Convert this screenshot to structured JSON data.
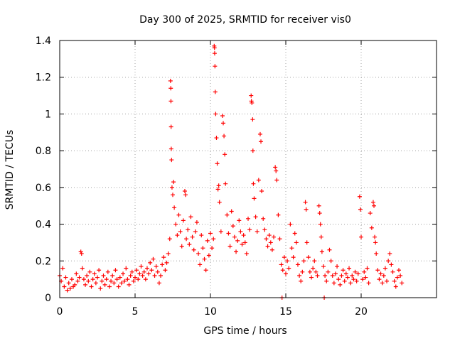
{
  "chart_data": {
    "type": "scatter",
    "title": "Day 300 of 2025, SRMTID for receiver vis0",
    "xlabel": "GPS time / hours",
    "ylabel": "SRMTID / TECUs",
    "xlim": [
      0,
      25
    ],
    "ylim": [
      0,
      1.4
    ],
    "xticks": [
      0,
      5,
      10,
      15,
      20
    ],
    "xtick_labels": [
      "0",
      "5",
      "10",
      "15",
      "20"
    ],
    "yticks": [
      0,
      0.2,
      0.4,
      0.6,
      0.8,
      1,
      1.2,
      1.4
    ],
    "ytick_labels": [
      "0",
      "0.2",
      "0.4",
      "0.6",
      "0.8",
      "1",
      "1.2",
      "1.4"
    ],
    "grid": true,
    "marker": "+",
    "color": "#ff0000",
    "series": [
      {
        "name": "vis0",
        "points": [
          [
            0.0,
            0.12
          ],
          [
            0.1,
            0.09
          ],
          [
            0.2,
            0.16
          ],
          [
            0.3,
            0.06
          ],
          [
            0.4,
            0.11
          ],
          [
            0.5,
            0.04
          ],
          [
            0.6,
            0.08
          ],
          [
            0.7,
            0.05
          ],
          [
            0.8,
            0.1
          ],
          [
            0.9,
            0.06
          ],
          [
            1.0,
            0.07
          ],
          [
            1.1,
            0.13
          ],
          [
            1.2,
            0.09
          ],
          [
            1.3,
            0.11
          ],
          [
            1.4,
            0.25
          ],
          [
            1.45,
            0.24
          ],
          [
            1.5,
            0.16
          ],
          [
            1.6,
            0.1
          ],
          [
            1.7,
            0.07
          ],
          [
            1.8,
            0.12
          ],
          [
            1.9,
            0.09
          ],
          [
            2.0,
            0.14
          ],
          [
            2.1,
            0.06
          ],
          [
            2.2,
            0.1
          ],
          [
            2.3,
            0.13
          ],
          [
            2.4,
            0.08
          ],
          [
            2.5,
            0.11
          ],
          [
            2.6,
            0.15
          ],
          [
            2.7,
            0.05
          ],
          [
            2.8,
            0.09
          ],
          [
            2.9,
            0.12
          ],
          [
            3.0,
            0.07
          ],
          [
            3.1,
            0.1
          ],
          [
            3.2,
            0.14
          ],
          [
            3.3,
            0.06
          ],
          [
            3.4,
            0.09
          ],
          [
            3.5,
            0.12
          ],
          [
            3.6,
            0.08
          ],
          [
            3.7,
            0.15
          ],
          [
            3.8,
            0.1
          ],
          [
            3.9,
            0.06
          ],
          [
            4.0,
            0.11
          ],
          [
            4.1,
            0.08
          ],
          [
            4.2,
            0.13
          ],
          [
            4.3,
            0.09
          ],
          [
            4.4,
            0.16
          ],
          [
            4.5,
            0.1
          ],
          [
            4.6,
            0.07
          ],
          [
            4.7,
            0.12
          ],
          [
            4.8,
            0.14
          ],
          [
            4.9,
            0.09
          ],
          [
            5.0,
            0.11
          ],
          [
            5.1,
            0.15
          ],
          [
            5.2,
            0.1
          ],
          [
            5.3,
            0.13
          ],
          [
            5.4,
            0.17
          ],
          [
            5.5,
            0.12
          ],
          [
            5.6,
            0.14
          ],
          [
            5.7,
            0.1
          ],
          [
            5.8,
            0.16
          ],
          [
            5.9,
            0.13
          ],
          [
            6.0,
            0.19
          ],
          [
            6.1,
            0.15
          ],
          [
            6.2,
            0.21
          ],
          [
            6.3,
            0.12
          ],
          [
            6.4,
            0.17
          ],
          [
            6.5,
            0.14
          ],
          [
            6.6,
            0.08
          ],
          [
            6.7,
            0.12
          ],
          [
            6.8,
            0.18
          ],
          [
            6.9,
            0.22
          ],
          [
            7.0,
            0.15
          ],
          [
            7.1,
            0.19
          ],
          [
            7.2,
            0.24
          ],
          [
            7.3,
            0.32
          ],
          [
            7.35,
            1.18
          ],
          [
            7.37,
            1.14
          ],
          [
            7.38,
            1.07
          ],
          [
            7.39,
            0.93
          ],
          [
            7.4,
            0.81
          ],
          [
            7.42,
            0.75
          ],
          [
            7.45,
            0.6
          ],
          [
            7.5,
            0.56
          ],
          [
            7.55,
            0.63
          ],
          [
            7.6,
            0.49
          ],
          [
            7.7,
            0.4
          ],
          [
            7.8,
            0.34
          ],
          [
            7.9,
            0.45
          ],
          [
            8.0,
            0.36
          ],
          [
            8.1,
            0.28
          ],
          [
            8.2,
            0.42
          ],
          [
            8.3,
            0.58
          ],
          [
            8.35,
            0.56
          ],
          [
            8.4,
            0.32
          ],
          [
            8.5,
            0.37
          ],
          [
            8.6,
            0.29
          ],
          [
            8.7,
            0.44
          ],
          [
            8.8,
            0.33
          ],
          [
            8.9,
            0.26
          ],
          [
            9.0,
            0.36
          ],
          [
            9.1,
            0.41
          ],
          [
            9.2,
            0.24
          ],
          [
            9.3,
            0.18
          ],
          [
            9.4,
            0.34
          ],
          [
            9.5,
            0.27
          ],
          [
            9.6,
            0.21
          ],
          [
            9.7,
            0.15
          ],
          [
            9.8,
            0.31
          ],
          [
            9.9,
            0.23
          ],
          [
            10.0,
            0.35
          ],
          [
            10.1,
            0.27
          ],
          [
            10.2,
            0.32
          ],
          [
            10.25,
            1.37
          ],
          [
            10.27,
            1.36
          ],
          [
            10.28,
            1.33
          ],
          [
            10.3,
            1.26
          ],
          [
            10.32,
            1.12
          ],
          [
            10.35,
            1.0
          ],
          [
            10.4,
            0.87
          ],
          [
            10.45,
            0.73
          ],
          [
            10.5,
            0.59
          ],
          [
            10.55,
            0.61
          ],
          [
            10.6,
            0.52
          ],
          [
            10.7,
            0.36
          ],
          [
            10.8,
            0.99
          ],
          [
            10.85,
            0.95
          ],
          [
            10.9,
            0.88
          ],
          [
            10.95,
            0.78
          ],
          [
            11.0,
            0.62
          ],
          [
            11.1,
            0.45
          ],
          [
            11.2,
            0.35
          ],
          [
            11.3,
            0.28
          ],
          [
            11.4,
            0.47
          ],
          [
            11.5,
            0.39
          ],
          [
            11.6,
            0.33
          ],
          [
            11.7,
            0.25
          ],
          [
            11.8,
            0.31
          ],
          [
            11.9,
            0.42
          ],
          [
            12.0,
            0.36
          ],
          [
            12.1,
            0.29
          ],
          [
            12.2,
            0.34
          ],
          [
            12.3,
            0.3
          ],
          [
            12.4,
            0.24
          ],
          [
            12.5,
            0.43
          ],
          [
            12.6,
            0.37
          ],
          [
            12.7,
            1.1
          ],
          [
            12.72,
            1.07
          ],
          [
            12.75,
            1.06
          ],
          [
            12.8,
            0.97
          ],
          [
            12.82,
            0.8
          ],
          [
            12.85,
            0.62
          ],
          [
            12.9,
            0.54
          ],
          [
            13.0,
            0.44
          ],
          [
            13.1,
            0.36
          ],
          [
            13.2,
            0.64
          ],
          [
            13.3,
            0.89
          ],
          [
            13.35,
            0.85
          ],
          [
            13.4,
            0.58
          ],
          [
            13.5,
            0.43
          ],
          [
            13.6,
            0.37
          ],
          [
            13.7,
            0.32
          ],
          [
            13.8,
            0.28
          ],
          [
            13.9,
            0.34
          ],
          [
            14.0,
            0.3
          ],
          [
            14.1,
            0.26
          ],
          [
            14.2,
            0.33
          ],
          [
            14.3,
            0.71
          ],
          [
            14.35,
            0.69
          ],
          [
            14.4,
            0.64
          ],
          [
            14.5,
            0.45
          ],
          [
            14.6,
            0.32
          ],
          [
            14.7,
            0.18
          ],
          [
            14.75,
            0.0
          ],
          [
            14.8,
            0.15
          ],
          [
            14.9,
            0.22
          ],
          [
            15.0,
            0.13
          ],
          [
            15.1,
            0.2
          ],
          [
            15.2,
            0.16
          ],
          [
            15.3,
            0.4
          ],
          [
            15.4,
            0.27
          ],
          [
            15.5,
            0.22
          ],
          [
            15.6,
            0.35
          ],
          [
            15.7,
            0.3
          ],
          [
            15.8,
            0.18
          ],
          [
            15.9,
            0.12
          ],
          [
            16.0,
            0.09
          ],
          [
            16.1,
            0.14
          ],
          [
            16.2,
            0.2
          ],
          [
            16.3,
            0.52
          ],
          [
            16.35,
            0.48
          ],
          [
            16.4,
            0.3
          ],
          [
            16.5,
            0.22
          ],
          [
            16.6,
            0.14
          ],
          [
            16.7,
            0.11
          ],
          [
            16.8,
            0.16
          ],
          [
            16.9,
            0.2
          ],
          [
            17.0,
            0.14
          ],
          [
            17.1,
            0.12
          ],
          [
            17.2,
            0.5
          ],
          [
            17.25,
            0.46
          ],
          [
            17.3,
            0.4
          ],
          [
            17.35,
            0.33
          ],
          [
            17.4,
            0.25
          ],
          [
            17.5,
            0.17
          ],
          [
            17.55,
            0.0
          ],
          [
            17.6,
            0.12
          ],
          [
            17.7,
            0.09
          ],
          [
            17.8,
            0.14
          ],
          [
            17.9,
            0.26
          ],
          [
            18.0,
            0.2
          ],
          [
            18.1,
            0.12
          ],
          [
            18.2,
            0.08
          ],
          [
            18.3,
            0.13
          ],
          [
            18.4,
            0.17
          ],
          [
            18.5,
            0.1
          ],
          [
            18.6,
            0.07
          ],
          [
            18.7,
            0.12
          ],
          [
            18.8,
            0.15
          ],
          [
            18.9,
            0.09
          ],
          [
            19.0,
            0.13
          ],
          [
            19.1,
            0.11
          ],
          [
            19.2,
            0.16
          ],
          [
            19.3,
            0.08
          ],
          [
            19.4,
            0.12
          ],
          [
            19.5,
            0.1
          ],
          [
            19.6,
            0.14
          ],
          [
            19.7,
            0.09
          ],
          [
            19.8,
            0.13
          ],
          [
            19.9,
            0.55
          ],
          [
            19.95,
            0.48
          ],
          [
            20.0,
            0.33
          ],
          [
            20.1,
            0.1
          ],
          [
            20.2,
            0.14
          ],
          [
            20.3,
            0.11
          ],
          [
            20.4,
            0.16
          ],
          [
            20.5,
            0.08
          ],
          [
            20.6,
            0.46
          ],
          [
            20.7,
            0.38
          ],
          [
            20.8,
            0.52
          ],
          [
            20.85,
            0.5
          ],
          [
            20.9,
            0.33
          ],
          [
            20.95,
            0.3
          ],
          [
            21.0,
            0.24
          ],
          [
            21.1,
            0.15
          ],
          [
            21.2,
            0.1
          ],
          [
            21.3,
            0.13
          ],
          [
            21.4,
            0.08
          ],
          [
            21.5,
            0.12
          ],
          [
            21.6,
            0.16
          ],
          [
            21.7,
            0.09
          ],
          [
            21.8,
            0.2
          ],
          [
            21.9,
            0.24
          ],
          [
            22.0,
            0.18
          ],
          [
            22.1,
            0.14
          ],
          [
            22.2,
            0.09
          ],
          [
            22.3,
            0.06
          ],
          [
            22.4,
            0.11
          ],
          [
            22.5,
            0.15
          ],
          [
            22.6,
            0.12
          ],
          [
            22.7,
            0.08
          ]
        ]
      }
    ]
  }
}
